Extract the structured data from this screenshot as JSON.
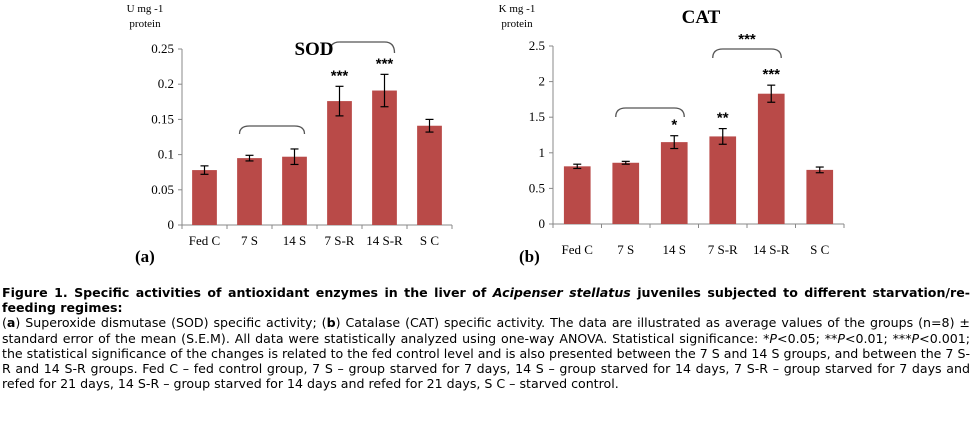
{
  "chart_data": [
    {
      "type": "bar",
      "panel_label": "(a)",
      "title": "SOD",
      "ylabel_line1": "U mg -1",
      "ylabel_line2": "protein",
      "xlabel": "",
      "categories": [
        "Fed C",
        "7 S",
        "14 S",
        "7 S-R",
        "14 S-R",
        "S C"
      ],
      "values": [
        0.078,
        0.095,
        0.097,
        0.176,
        0.191,
        0.141
      ],
      "errors": [
        0.006,
        0.004,
        0.011,
        0.021,
        0.023,
        0.009
      ],
      "significance": [
        "",
        "",
        "",
        "***",
        "***",
        ""
      ],
      "yticks": [
        "0",
        "0.05",
        "0.1",
        "0.15",
        "0.2",
        "0.25"
      ],
      "ylim": [
        0,
        0.25
      ],
      "bar_color": "#b94a48",
      "brackets": [
        {
          "from": "7 S",
          "to": "14 S",
          "label": ""
        },
        {
          "from": "7 S-R",
          "to": "14 S-R",
          "label": ""
        }
      ]
    },
    {
      "type": "bar",
      "panel_label": "(b)",
      "title": "CAT",
      "ylabel_line1": "K mg -1",
      "ylabel_line2": "protein",
      "xlabel": "",
      "categories": [
        "Fed C",
        "7 S",
        "14 S",
        "7 S-R",
        "14 S-R",
        "S C"
      ],
      "values": [
        0.81,
        0.86,
        1.15,
        1.23,
        1.83,
        0.76
      ],
      "errors": [
        0.03,
        0.02,
        0.09,
        0.11,
        0.12,
        0.04
      ],
      "significance": [
        "",
        "",
        "*",
        "**",
        "***",
        ""
      ],
      "yticks": [
        "0",
        "0.5",
        "1",
        "1.5",
        "2",
        "2.5"
      ],
      "ylim": [
        0,
        2.5
      ],
      "bar_color": "#b94a48",
      "brackets": [
        {
          "from": "7 S",
          "to": "14 S",
          "label": ""
        },
        {
          "from": "7 S-R",
          "to": "14 S-R",
          "label": "***"
        }
      ]
    }
  ],
  "caption": {
    "figure_label": "Figure 1.",
    "title_before": " Specific activities of antioxidant enzymes in the liver of ",
    "title_italic": "Acipenser stellatus",
    "title_after": " juveniles subjected to different starvation/re-feeding regimes:",
    "a_label": "a",
    "a_text": " Superoxide dismutase (SOD) specific activity; (",
    "b_label": "b",
    "b_text": ") Catalase (CAT) specific activity. The data are illustrated as average values of the groups (n=8) ± standard error of the mean (S.E.M). All data were statistically analyzed using one-way ANOVA. Statistical significance: *",
    "p1": "P",
    "p1_rest": "<0.05; **",
    "p2": "P",
    "p2_rest": "<0.01; ***",
    "p3": "P",
    "p3_rest": "<0.001; the statistical significance of the changes is related to the fed control level and is also presented between the 7 S and 14 S groups, and between the 7 S-R and 14 S-R groups. Fed C – fed control group, 7 S – group starved for 7 days, 14 S – group starved for 14 days, 7 S-R – group starved for 7 days and refed for 21 days, 14 S-R – group starved for 14 days and refed for 21 days, S C – starved control."
  }
}
